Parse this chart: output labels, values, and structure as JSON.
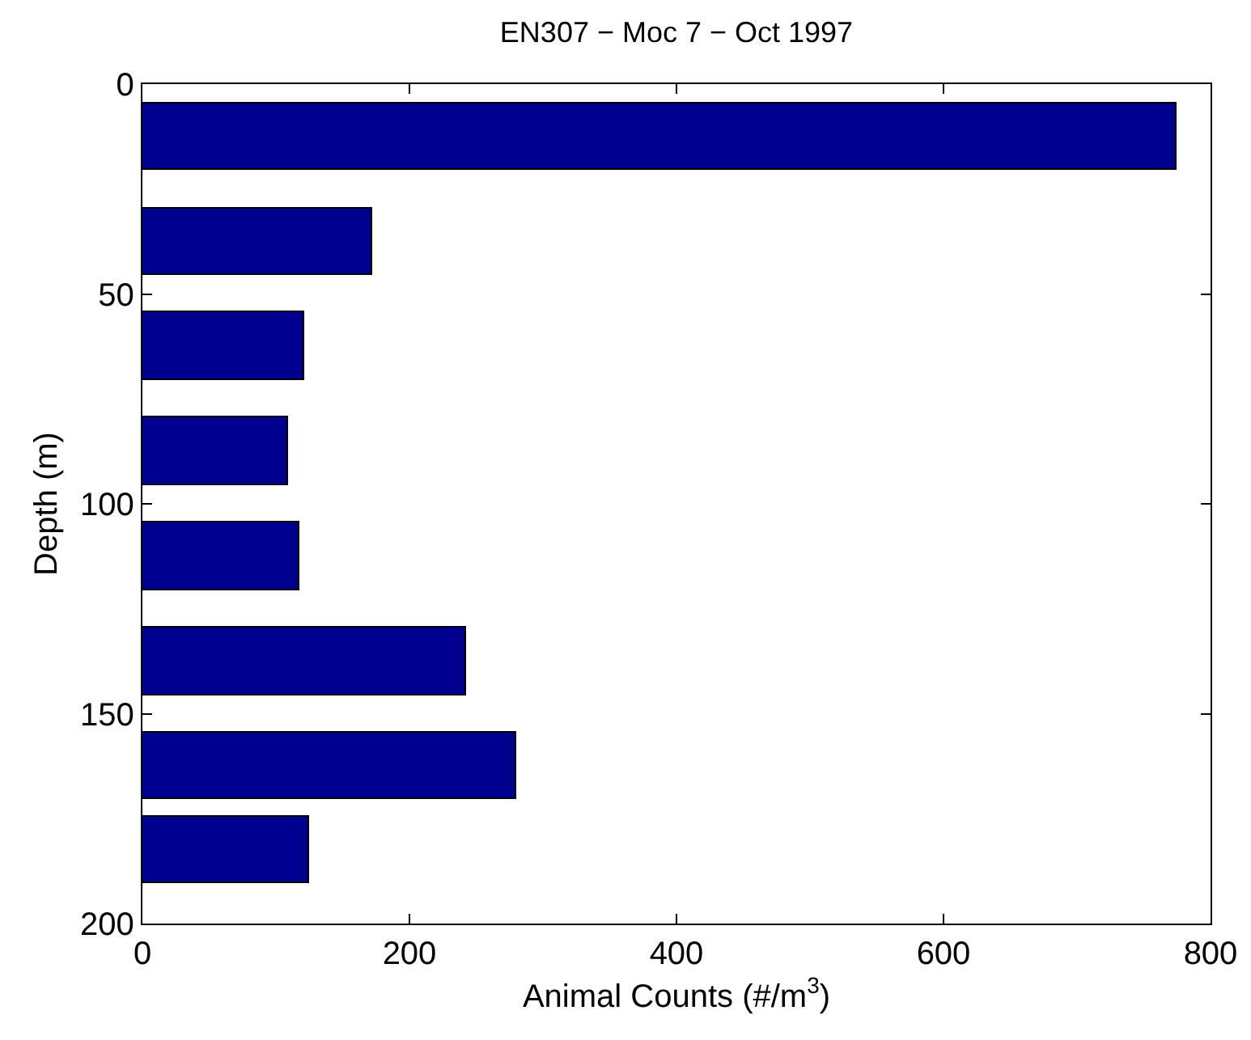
{
  "chart_data": {
    "type": "bar",
    "orientation": "horizontal",
    "title": "EN307 − Moc 7 − Oct 1997",
    "xlabel": "Animal Counts (#/m$^{3}$)",
    "ylabel": "Depth (m)",
    "x": [
      12.5,
      37.5,
      62.5,
      87.5,
      112.5,
      137.5,
      162.5,
      182.5
    ],
    "values": [
      774,
      172,
      121,
      109,
      117,
      243,
      280,
      125
    ],
    "color": "#000090",
    "xlim": [
      0,
      800
    ],
    "xticks": [
      0,
      200,
      400,
      600,
      800
    ],
    "ylim": [
      200,
      0
    ],
    "yticks": [
      0,
      50,
      100,
      150,
      200
    ],
    "grid": false
  }
}
